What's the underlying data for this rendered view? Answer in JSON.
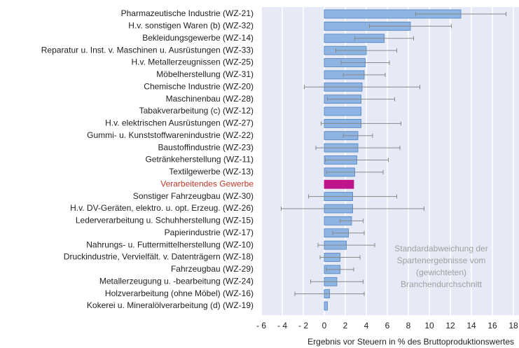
{
  "chart_data": {
    "type": "hbar",
    "categories": [
      "Pharmazeutische Industrie (WZ-21)",
      "H.v. sonstigen Waren (b) (WZ-32)",
      "Bekleidungsgewerbe (WZ-14)",
      "Reparatur u. Inst. v. Maschinen u. Ausrüstungen (WZ-33)",
      "H.v. Metallerzeugnissen (WZ-25)",
      "Möbelherstellung (WZ-31)",
      "Chemische Industrie (WZ-20)",
      "Maschinenbau (WZ-28)",
      "Tabakverarbeitung (c) (WZ-12)",
      "H.v. elektrischen Ausrüstungen (WZ-27)",
      "Gummi- u. Kunststoffwarenindustrie (WZ-22)",
      "Baustoffindustrie (WZ-23)",
      "Getränkeherstellung (WZ-11)",
      "Textilgewerbe (WZ-13)",
      "Verarbeitendes Gewerbe",
      "Sonstiger Fahrzeugbau (WZ-30)",
      "H.v. DV-Geräten, elektro. u. opt. Erzeug. (WZ-26)",
      "Lederverarbeitung u. Schuhherstellung (WZ-15)",
      "Papierindustrie (WZ-17)",
      "Nahrungs- u. Futtermittelherstellung (WZ-10)",
      "Druckindustrie, Vervielfält. v. Datenträgern (WZ-18)",
      "Fahrzeugbau (WZ-29)",
      "Metallerzeugung u. -bearbeitung (WZ-24)",
      "Holzverarbeitung (ohne Möbel) (WZ-16)",
      "Kokerei u. Mineralölverarbeitung (d) (WZ-19)"
    ],
    "values": [
      13.0,
      8.2,
      5.7,
      4.0,
      3.9,
      3.8,
      3.6,
      3.5,
      3.5,
      3.5,
      3.2,
      3.2,
      3.1,
      2.9,
      2.8,
      2.7,
      2.7,
      2.6,
      2.3,
      2.1,
      1.5,
      1.5,
      1.2,
      0.5,
      0.3
    ],
    "errors": [
      4.3,
      3.9,
      2.8,
      2.9,
      2.3,
      2.0,
      5.5,
      3.2,
      null,
      3.8,
      1.4,
      4.0,
      3.0,
      2.7,
      null,
      4.2,
      6.8,
      1.1,
      1.5,
      2.7,
      1.9,
      1.3,
      2.5,
      3.3,
      null
    ],
    "color": "#8db4e2",
    "edge_color": "#4f81bd",
    "highlight_index": 14,
    "highlight_color": "#c0148c",
    "highlight_label_color": "#c0392b",
    "xlim": [
      -6,
      18
    ],
    "xticks": [
      {
        "value": -6,
        "label": "- 6"
      },
      {
        "value": -4,
        "label": "- 4"
      },
      {
        "value": -2,
        "label": "- 2"
      },
      0,
      2,
      4,
      6,
      8,
      10,
      12,
      14,
      16,
      18
    ],
    "grid": true,
    "x_label": "Ergebnis vor Steuern in % des Bruttoproduktionswertes",
    "annotation": [
      "Standardabweichung der",
      "Spartenergebnisse vom",
      "(gewichteten)",
      "Branchendurchschnitt"
    ]
  }
}
